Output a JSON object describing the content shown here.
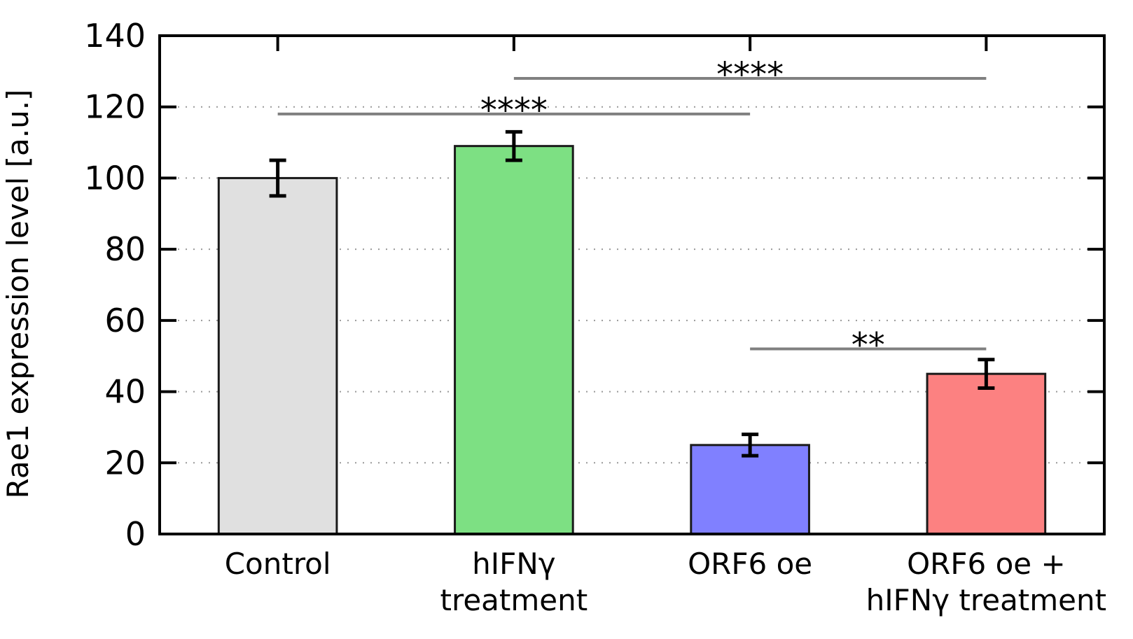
{
  "figure": {
    "background": "#ffffff",
    "axis_color": "#000000",
    "gridline_color": "#999999"
  },
  "chart_data": {
    "type": "bar",
    "title": "",
    "xlabel": "",
    "ylabel": "Rae1 expression level [a.u.]",
    "ylim": [
      0,
      140
    ],
    "ytick_step": 20,
    "ytick_labels": [
      "0",
      "20",
      "40",
      "60",
      "80",
      "100",
      "120",
      "140"
    ],
    "grid": "horizontal-dotted",
    "legend_position": "none",
    "categories": [
      "Control",
      "hIFNγ\ntreatment",
      "ORF6 oe",
      "ORF6 oe +\nhIFNγ treatment"
    ],
    "values": [
      100,
      109,
      25,
      45
    ],
    "errors": [
      5,
      4,
      3,
      4
    ],
    "bar_colors": [
      "#e0e0e0",
      "#7de083",
      "#8080ff",
      "#fc8181"
    ],
    "bar_edge_color": "#1a1a1a",
    "error_bar_color": "#000000",
    "significance_line_color": "#808080",
    "significance": [
      {
        "from_index": 0,
        "to_index": 2,
        "level": 118,
        "label": "****"
      },
      {
        "from_index": 1,
        "to_index": 3,
        "level": 128,
        "label": "****"
      },
      {
        "from_index": 2,
        "to_index": 3,
        "level": 52,
        "label": "**"
      }
    ]
  }
}
